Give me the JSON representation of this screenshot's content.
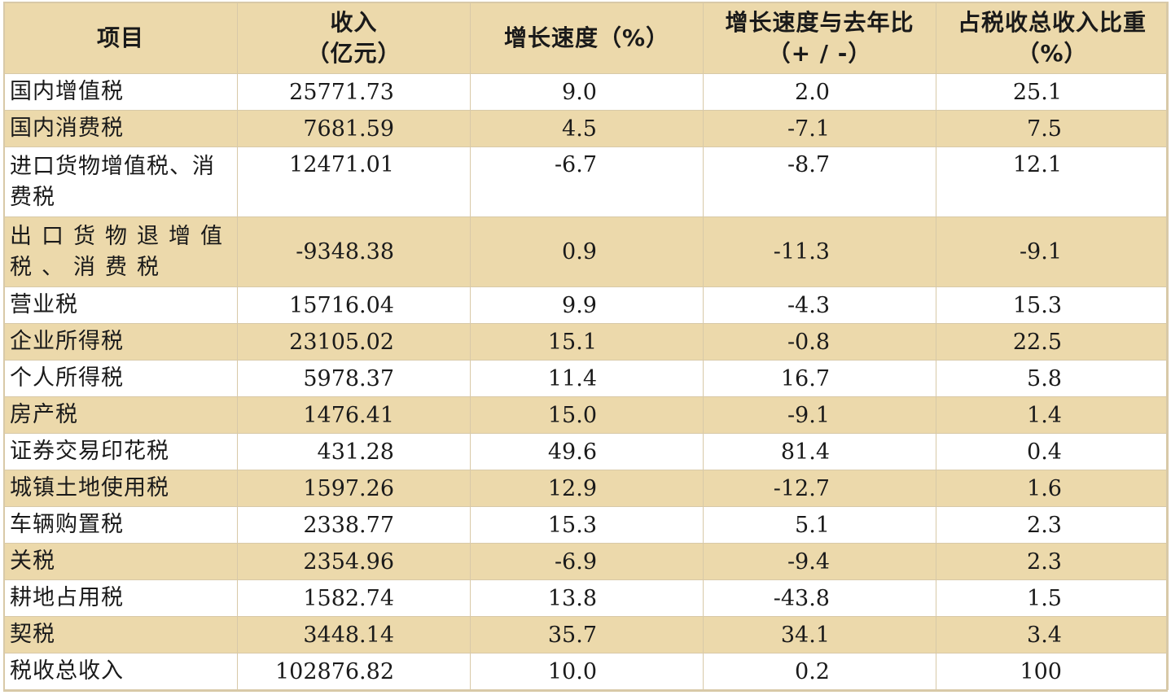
{
  "header": {
    "item": "项目",
    "income_line1": "收入",
    "income_line2": "（亿元）",
    "growth": "增长速度（%）",
    "diff_line1": "增长速度与去年比",
    "diff_line2": "（+ / -）",
    "share_line1": "占税收总收入比重",
    "share_line2": "（%）"
  },
  "rows": [
    {
      "item": "国内增值税",
      "income": "25771.73",
      "growth": "9.0",
      "diff": "2.0",
      "share": "25.1"
    },
    {
      "item": "国内消费税",
      "income": "7681.59",
      "growth": "4.5",
      "diff": "-7.1",
      "share": "7.5"
    },
    {
      "item": "进口货物增值税、消费税",
      "income": "12471.01",
      "growth": "-6.7",
      "diff": "-8.7",
      "share": "12.1"
    },
    {
      "item": "出口货物退增值税、消费税",
      "income": "-9348.38",
      "growth": "0.9",
      "diff": "-11.3",
      "share": "-9.1"
    },
    {
      "item": "营业税",
      "income": "15716.04",
      "growth": "9.9",
      "diff": "-4.3",
      "share": "15.3"
    },
    {
      "item": "企业所得税",
      "income": "23105.02",
      "growth": "15.1",
      "diff": "-0.8",
      "share": "22.5"
    },
    {
      "item": "个人所得税",
      "income": "5978.37",
      "growth": "11.4",
      "diff": "16.7",
      "share": "5.8"
    },
    {
      "item": "房产税",
      "income": "1476.41",
      "growth": "15.0",
      "diff": "-9.1",
      "share": "1.4"
    },
    {
      "item": "证券交易印花税",
      "income": "431.28",
      "growth": "49.6",
      "diff": "81.4",
      "share": "0.4"
    },
    {
      "item": "城镇土地使用税",
      "income": "1597.26",
      "growth": "12.9",
      "diff": "-12.7",
      "share": "1.6"
    },
    {
      "item": "车辆购置税",
      "income": "2338.77",
      "growth": "15.3",
      "diff": "5.1",
      "share": "2.3"
    },
    {
      "item": "关税",
      "income": "2354.96",
      "growth": "-6.9",
      "diff": "-9.4",
      "share": "2.3"
    },
    {
      "item": "耕地占用税",
      "income": "1582.74",
      "growth": "13.8",
      "diff": "-43.8",
      "share": "1.5"
    },
    {
      "item": "契税",
      "income": "3448.14",
      "growth": "35.7",
      "diff": "34.1",
      "share": "3.4"
    },
    {
      "item": "税收总收入",
      "income": "102876.82",
      "growth": "10.0",
      "diff": "0.2",
      "share": "100"
    }
  ],
  "colors": {
    "band": "#ecd9ab",
    "plain": "#ffffff",
    "border": "#d8c9a8",
    "text": "#1a1a1a"
  }
}
